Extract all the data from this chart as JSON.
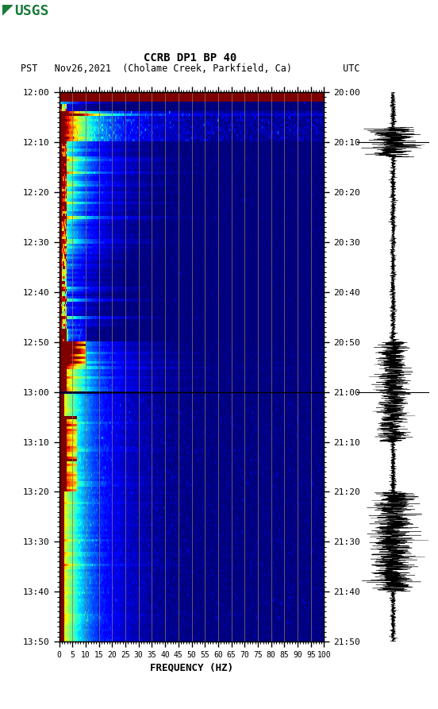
{
  "title_line1": "CCRB DP1 BP 40",
  "title_line2": "PST   Nov26,2021  (Cholame Creek, Parkfield, Ca)         UTC",
  "xlabel": "FREQUENCY (HZ)",
  "freq_ticks": [
    0,
    5,
    10,
    15,
    20,
    25,
    30,
    35,
    40,
    45,
    50,
    55,
    60,
    65,
    70,
    75,
    80,
    85,
    90,
    95,
    100
  ],
  "left_time_labels": [
    "12:00",
    "12:10",
    "12:20",
    "12:30",
    "12:40",
    "12:50",
    "13:00",
    "13:10",
    "13:20",
    "13:30",
    "13:40",
    "13:50"
  ],
  "right_time_labels": [
    "20:00",
    "20:10",
    "20:20",
    "20:30",
    "20:40",
    "20:50",
    "21:00",
    "21:10",
    "21:20",
    "21:30",
    "21:40",
    "21:50"
  ],
  "freq_gridlines": [
    5,
    10,
    15,
    20,
    25,
    30,
    35,
    40,
    45,
    50,
    55,
    60,
    65,
    70,
    75,
    80,
    85,
    90,
    95
  ],
  "total_minutes": 110,
  "freq_max": 100,
  "bg_color": "#ffffff",
  "usgs_green": "#1a7a3a",
  "vertical_line_color": "#8B7355"
}
